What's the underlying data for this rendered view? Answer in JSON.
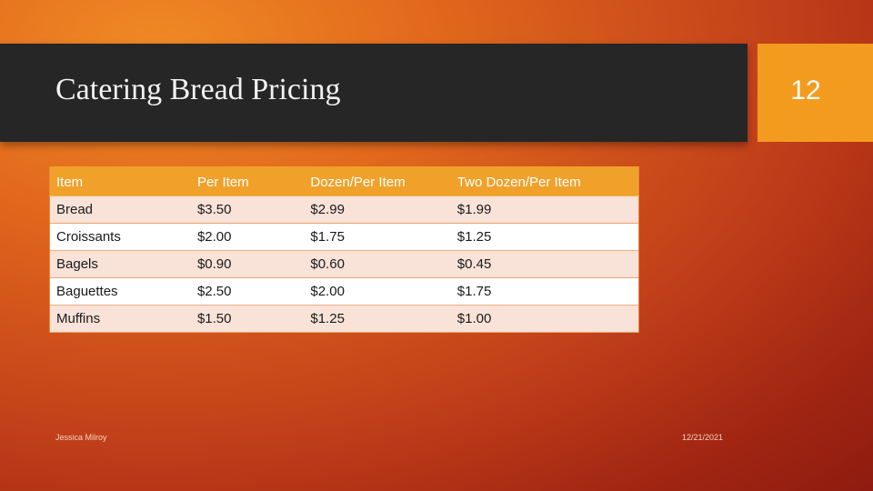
{
  "slide": {
    "title": "Catering Bread Pricing",
    "number": "12"
  },
  "table": {
    "headers": [
      "Item",
      "Per Item",
      "Dozen/Per Item",
      "Two Dozen/Per Item"
    ],
    "rows": [
      [
        "Bread",
        "$3.50",
        "$2.99",
        "$1.99"
      ],
      [
        "Croissants",
        "$2.00",
        "$1.75",
        "$1.25"
      ],
      [
        "Bagels",
        "$0.90",
        "$0.60",
        "$0.45"
      ],
      [
        "Baguettes",
        "$2.50",
        "$2.00",
        "$1.75"
      ],
      [
        "Muffins",
        "$1.50",
        "$1.25",
        "$1.00"
      ]
    ]
  },
  "footer": {
    "author": "Jessica Milroy",
    "date": "12/21/2021"
  },
  "colors": {
    "title_bar": "#262626",
    "accent": "#f39b1e",
    "header_row": "#f0a12a",
    "band_row": "#f9e2d8",
    "background_center": "#e0651c",
    "background_edge": "#8e1c10"
  }
}
